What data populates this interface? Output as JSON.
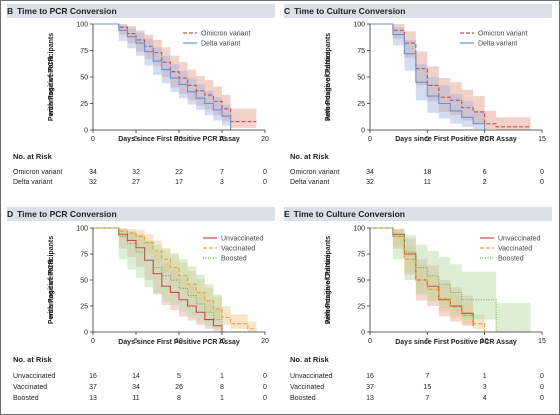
{
  "colors": {
    "omicron": "#c65050",
    "omicron_band": "#e29a88",
    "delta": "#6e8fcf",
    "delta_band": "#9db1e0",
    "unvacc": "#c44a44",
    "unvacc_band": "#e8a4a0",
    "vacc": "#e2a13a",
    "vacc_band": "#f0c583",
    "boost": "#6aa84f",
    "boost_band": "#b4d9a2",
    "title_bg": "#dadfe8"
  },
  "panels": [
    {
      "id": "B",
      "letter": "B",
      "title": "Time to PCR Conversion",
      "ylabel": [
        "Percentage of Participants",
        "with Positive PCR"
      ],
      "xlabel": "Days since First Positive PCR Assay",
      "xlim": [
        0,
        20
      ],
      "xticks": [
        0,
        5,
        10,
        15,
        20
      ],
      "ylim": [
        0,
        100
      ],
      "yticks": [
        0,
        25,
        50,
        75,
        100
      ],
      "risk_title": "No. at Risk",
      "risk_groups": [
        "Omicron variant",
        "Delta variant"
      ],
      "risk_rows": [
        [
          "34",
          "32",
          "22",
          "7",
          "0"
        ],
        [
          "32",
          "27",
          "17",
          "3",
          "0"
        ]
      ],
      "legend": [
        {
          "label": "Omicron variant",
          "color": "#c65050",
          "dash": "4,2"
        },
        {
          "label": "Delta variant",
          "color": "#6e8fcf",
          "dash": ""
        }
      ]
    },
    {
      "id": "C",
      "letter": "C",
      "title": "Time to Culture Conversion",
      "ylabel": [
        "Percentage of Participants",
        "with Positive Culture"
      ],
      "xlabel": "Days since First Positive PCR Assay",
      "xlim": [
        0,
        15
      ],
      "xticks": [
        0,
        5,
        10,
        15
      ],
      "ylim": [
        0,
        100
      ],
      "yticks": [
        0,
        25,
        50,
        75,
        100
      ],
      "risk_title": "No. at Risk",
      "risk_groups": [
        "Omicron variant",
        "Delta variant"
      ],
      "risk_rows": [
        [
          "34",
          "18",
          "6",
          "0"
        ],
        [
          "32",
          "11",
          "2",
          "0"
        ]
      ],
      "legend": [
        {
          "label": "Omicron variant",
          "color": "#c65050",
          "dash": "4,2"
        },
        {
          "label": "Delta variant",
          "color": "#6e8fcf",
          "dash": ""
        }
      ]
    },
    {
      "id": "D",
      "letter": "D",
      "title": "Time to PCR Conversion",
      "ylabel": [
        "Percentage of Participants",
        "with Positive PCR"
      ],
      "xlabel": "Days since First Positive PCR Assay",
      "xlim": [
        0,
        20
      ],
      "xticks": [
        0,
        5,
        10,
        15,
        20
      ],
      "ylim": [
        0,
        100
      ],
      "yticks": [
        0,
        25,
        50,
        75,
        100
      ],
      "risk_title": "No. at Risk",
      "risk_groups": [
        "Unvaccinated",
        "Vaccinated",
        "Boosted"
      ],
      "risk_rows": [
        [
          "16",
          "14",
          "5",
          "1",
          "0"
        ],
        [
          "37",
          "34",
          "26",
          "8",
          "0"
        ],
        [
          "13",
          "11",
          "8",
          "1",
          "0"
        ]
      ],
      "legend": [
        {
          "label": "Unvaccinated",
          "color": "#c44a44",
          "dash": ""
        },
        {
          "label": "Vaccinated",
          "color": "#e2a13a",
          "dash": "4,2"
        },
        {
          "label": "Boosted",
          "color": "#6aa84f",
          "dash": "1,1.5"
        }
      ]
    },
    {
      "id": "E",
      "letter": "E",
      "title": "Time to Culture Conversion",
      "ylabel": [
        "Percentage of Participants",
        "with Positive Culture"
      ],
      "xlabel": "Days since First Positive PCR Assay",
      "xlim": [
        0,
        15
      ],
      "xticks": [
        0,
        5,
        10,
        15
      ],
      "ylim": [
        0,
        100
      ],
      "yticks": [
        0,
        25,
        50,
        75,
        100
      ],
      "risk_title": "No. at Risk",
      "risk_groups": [
        "Unvaccinated",
        "Vaccinated",
        "Boosted"
      ],
      "risk_rows": [
        [
          "16",
          "7",
          "1",
          "0"
        ],
        [
          "37",
          "15",
          "3",
          "0"
        ],
        [
          "13",
          "7",
          "4",
          "0"
        ]
      ],
      "legend": [
        {
          "label": "Unvaccinated",
          "color": "#c44a44",
          "dash": ""
        },
        {
          "label": "Vaccinated",
          "color": "#e2a13a",
          "dash": "4,2"
        },
        {
          "label": "Boosted",
          "color": "#6aa84f",
          "dash": "1,1.5"
        }
      ]
    }
  ],
  "chart_data": [
    {
      "type": "line",
      "panel": "B",
      "title": "Time to PCR Conversion",
      "xlabel": "Days since First Positive PCR Assay",
      "ylabel": "Percentage of Participants with Positive PCR",
      "xlim": [
        0,
        20
      ],
      "ylim": [
        0,
        100
      ],
      "legend": "top-right",
      "grid": false,
      "series": [
        {
          "name": "Omicron variant",
          "color": "#c65050",
          "dash": "4,2",
          "band_color": "#e29a88",
          "x": [
            0,
            3,
            4,
            5,
            6,
            7,
            8,
            9,
            10,
            11,
            12,
            13,
            14,
            15,
            16,
            19
          ],
          "y": [
            100,
            97,
            91,
            85,
            79,
            73,
            64,
            55,
            49,
            42,
            37,
            33,
            27,
            20,
            8,
            8
          ],
          "lower": [
            100,
            90,
            82,
            74,
            67,
            60,
            50,
            40,
            34,
            28,
            23,
            19,
            14,
            8,
            2,
            2
          ],
          "upper": [
            100,
            100,
            98,
            94,
            90,
            85,
            78,
            70,
            64,
            57,
            51,
            47,
            41,
            33,
            20,
            20
          ]
        },
        {
          "name": "Delta variant",
          "color": "#6e8fcf",
          "dash": "",
          "band_color": "#9db1e0",
          "x": [
            0,
            3,
            4,
            5,
            6,
            7,
            8,
            9,
            10,
            11,
            12,
            13,
            14,
            15,
            16
          ],
          "y": [
            100,
            94,
            88,
            82,
            74,
            65,
            57,
            49,
            43,
            36,
            30,
            25,
            19,
            13,
            0
          ],
          "lower": [
            100,
            84,
            77,
            70,
            61,
            52,
            44,
            36,
            30,
            24,
            19,
            14,
            9,
            4,
            0
          ],
          "upper": [
            100,
            99,
            96,
            92,
            86,
            78,
            70,
            62,
            56,
            49,
            43,
            37,
            31,
            24,
            0
          ]
        }
      ]
    },
    {
      "type": "line",
      "panel": "C",
      "title": "Time to Culture Conversion",
      "xlabel": "Days since First Positive PCR Assay",
      "ylabel": "Percentage of Participants with Positive Culture",
      "xlim": [
        0,
        15
      ],
      "ylim": [
        0,
        100
      ],
      "legend": "top-right",
      "grid": false,
      "series": [
        {
          "name": "Omicron variant",
          "color": "#c65050",
          "dash": "4,2",
          "band_color": "#e29a88",
          "x": [
            0,
            2,
            3,
            4,
            5,
            6,
            7,
            8,
            9,
            10,
            11,
            14
          ],
          "y": [
            100,
            94,
            82,
            58,
            42,
            31,
            28,
            21,
            17,
            6,
            3,
            3
          ],
          "lower": [
            100,
            86,
            68,
            42,
            27,
            17,
            14,
            9,
            6,
            1,
            0,
            0
          ],
          "upper": [
            100,
            100,
            93,
            74,
            60,
            49,
            45,
            38,
            32,
            18,
            12,
            12
          ]
        },
        {
          "name": "Delta variant",
          "color": "#6e8fcf",
          "dash": "",
          "band_color": "#9db1e0",
          "x": [
            0,
            2,
            3,
            4,
            5,
            6,
            7,
            8,
            9,
            10
          ],
          "y": [
            100,
            90,
            72,
            45,
            32,
            25,
            18,
            12,
            6,
            0
          ],
          "lower": [
            100,
            80,
            56,
            28,
            16,
            11,
            6,
            3,
            1,
            0
          ],
          "upper": [
            100,
            97,
            85,
            62,
            50,
            42,
            34,
            27,
            18,
            0
          ]
        }
      ]
    },
    {
      "type": "line",
      "panel": "D",
      "title": "Time to PCR Conversion",
      "xlabel": "Days since First Positive PCR Assay",
      "ylabel": "Percentage of Participants with Positive PCR",
      "xlim": [
        0,
        20
      ],
      "ylim": [
        0,
        100
      ],
      "legend": "top-right",
      "grid": false,
      "series": [
        {
          "name": "Unvaccinated",
          "color": "#c44a44",
          "dash": "",
          "band_color": "#e8a4a0",
          "x": [
            0,
            3,
            4,
            5,
            6,
            7,
            8,
            9,
            10,
            11,
            12,
            13,
            14,
            15
          ],
          "y": [
            100,
            94,
            88,
            81,
            69,
            56,
            44,
            38,
            31,
            25,
            19,
            12,
            6,
            0
          ],
          "lower": [
            100,
            80,
            72,
            63,
            50,
            37,
            26,
            21,
            15,
            11,
            7,
            3,
            1,
            0
          ],
          "upper": [
            100,
            99,
            97,
            94,
            87,
            77,
            67,
            60,
            52,
            45,
            38,
            31,
            24,
            0
          ]
        },
        {
          "name": "Vaccinated",
          "color": "#e2a13a",
          "dash": "4,2",
          "band_color": "#f0c583",
          "x": [
            0,
            3,
            4,
            5,
            6,
            7,
            8,
            9,
            10,
            11,
            12,
            13,
            14,
            15,
            16,
            17,
            18,
            19
          ],
          "y": [
            100,
            97,
            95,
            92,
            86,
            78,
            70,
            62,
            54,
            46,
            38,
            30,
            22,
            14,
            8,
            8,
            3,
            3
          ],
          "lower": [
            100,
            90,
            86,
            82,
            75,
            66,
            57,
            49,
            41,
            33,
            26,
            19,
            13,
            7,
            3,
            3,
            0,
            0
          ],
          "upper": [
            100,
            100,
            99,
            98,
            94,
            88,
            81,
            74,
            67,
            59,
            51,
            43,
            34,
            25,
            17,
            17,
            10,
            10
          ]
        },
        {
          "name": "Boosted",
          "color": "#6aa84f",
          "dash": "1,1.5",
          "band_color": "#b4d9a2",
          "x": [
            0,
            3,
            4,
            5,
            6,
            7,
            8,
            9,
            10,
            11,
            12,
            13,
            14,
            15
          ],
          "y": [
            100,
            92,
            85,
            77,
            69,
            62,
            54,
            50,
            42,
            35,
            27,
            19,
            12,
            0
          ],
          "lower": [
            100,
            70,
            60,
            52,
            43,
            36,
            29,
            26,
            20,
            15,
            10,
            6,
            3,
            0
          ],
          "upper": [
            100,
            99,
            96,
            92,
            88,
            84,
            79,
            76,
            70,
            63,
            55,
            46,
            36,
            0
          ]
        }
      ]
    },
    {
      "type": "line",
      "panel": "E",
      "title": "Time to Culture Conversion",
      "xlabel": "Days since First Positive PCR Assay",
      "ylabel": "Percentage of Participants with Positive Culture",
      "xlim": [
        0,
        15
      ],
      "ylim": [
        0,
        100
      ],
      "legend": "top-right",
      "grid": false,
      "series": [
        {
          "name": "Unvaccinated",
          "color": "#c44a44",
          "dash": "",
          "band_color": "#e8a4a0",
          "x": [
            0,
            2,
            3,
            4,
            5,
            6,
            7,
            8,
            9
          ],
          "y": [
            100,
            94,
            75,
            50,
            44,
            31,
            25,
            18,
            6
          ],
          "lower": [
            100,
            80,
            55,
            30,
            25,
            15,
            10,
            6,
            1
          ],
          "upper": [
            100,
            99,
            90,
            70,
            64,
            50,
            43,
            35,
            20
          ]
        },
        {
          "name": "Vaccinated",
          "color": "#e2a13a",
          "dash": "4,2",
          "band_color": "#f0c583",
          "x": [
            0,
            2,
            3,
            4,
            5,
            6,
            7,
            8,
            9,
            10
          ],
          "y": [
            100,
            92,
            70,
            50,
            41,
            32,
            24,
            16,
            8,
            0
          ],
          "lower": [
            100,
            83,
            57,
            37,
            29,
            20,
            14,
            8,
            3,
            0
          ],
          "upper": [
            100,
            98,
            82,
            64,
            54,
            45,
            36,
            27,
            17,
            0
          ]
        },
        {
          "name": "Boosted",
          "color": "#6aa84f",
          "dash": "1,1.5",
          "band_color": "#b4d9a2",
          "x": [
            0,
            2,
            3,
            4,
            5,
            6,
            7,
            8,
            9,
            10,
            11,
            12,
            13,
            14
          ],
          "y": [
            100,
            92,
            77,
            62,
            54,
            46,
            38,
            31,
            31,
            31,
            0,
            0,
            0,
            0
          ],
          "lower": [
            100,
            70,
            50,
            36,
            30,
            23,
            17,
            12,
            12,
            12,
            0,
            0,
            0,
            0
          ],
          "upper": [
            100,
            99,
            93,
            84,
            78,
            72,
            65,
            58,
            58,
            58,
            28,
            28,
            28,
            28
          ]
        }
      ]
    }
  ]
}
